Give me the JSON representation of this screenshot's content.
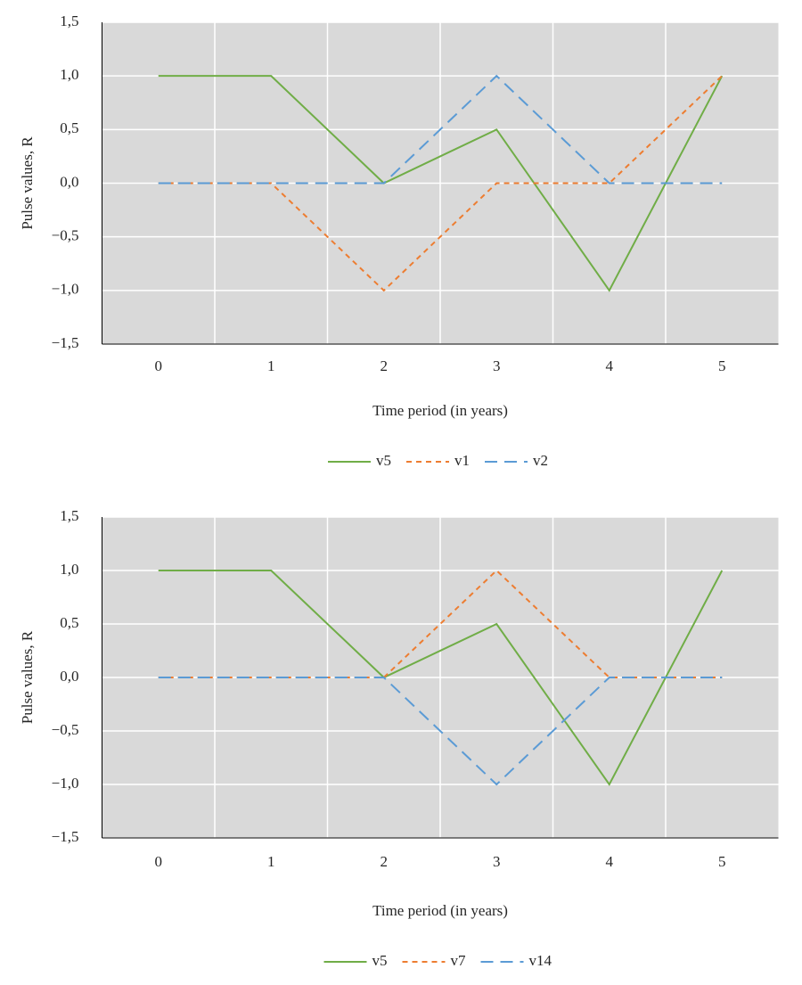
{
  "chart_data": [
    {
      "type": "line",
      "xlabel": "Time period (in years)",
      "ylabel": "Pulse values, R",
      "categories": [
        "0",
        "1",
        "2",
        "3",
        "4",
        "5"
      ],
      "ylim": [
        -1.5,
        1.5
      ],
      "yticks": [
        {
          "value": -1.5,
          "label": "−1,5"
        },
        {
          "value": -1,
          "label": "−1,0"
        },
        {
          "value": -0.5,
          "label": "−0,5"
        },
        {
          "value": 0,
          "label": "0,0"
        },
        {
          "value": 0.5,
          "label": "0,5"
        },
        {
          "value": 1,
          "label": "1,0"
        },
        {
          "value": 1.5,
          "label": "1,5"
        }
      ],
      "grid": true,
      "legend": "bottom",
      "series": [
        {
          "name": "v5",
          "color": "#70ad47",
          "dash": "solid",
          "values": [
            1,
            1,
            0,
            0.5,
            -1,
            1
          ]
        },
        {
          "name": "v1",
          "color": "#ed7d31",
          "dash": "dash",
          "values": [
            0,
            0,
            -1,
            0,
            0,
            1
          ]
        },
        {
          "name": "v2",
          "color": "#5b9bd5",
          "dash": "long-dash",
          "values": [
            0,
            0,
            0,
            1,
            0,
            0
          ]
        }
      ]
    },
    {
      "type": "line",
      "xlabel": "Time period (in years)",
      "ylabel": "Pulse values, R",
      "categories": [
        "0",
        "1",
        "2",
        "3",
        "4",
        "5"
      ],
      "ylim": [
        -1.5,
        1.5
      ],
      "yticks": [
        {
          "value": -1.5,
          "label": "−1,5"
        },
        {
          "value": -1,
          "label": "−1,0"
        },
        {
          "value": -0.5,
          "label": "−0,5"
        },
        {
          "value": 0,
          "label": "0,0"
        },
        {
          "value": 0.5,
          "label": "0,5"
        },
        {
          "value": 1,
          "label": "1,0"
        },
        {
          "value": 1.5,
          "label": "1,5"
        }
      ],
      "grid": true,
      "legend": "bottom",
      "series": [
        {
          "name": "v5",
          "color": "#70ad47",
          "dash": "solid",
          "values": [
            1,
            1,
            0,
            0.5,
            -1,
            1
          ]
        },
        {
          "name": "v7",
          "color": "#ed7d31",
          "dash": "dash",
          "values": [
            0,
            0,
            0,
            1,
            0,
            0
          ]
        },
        {
          "name": "v14",
          "color": "#5b9bd5",
          "dash": "long-dash",
          "values": [
            0,
            0,
            0,
            -1,
            0,
            0
          ]
        }
      ]
    }
  ]
}
